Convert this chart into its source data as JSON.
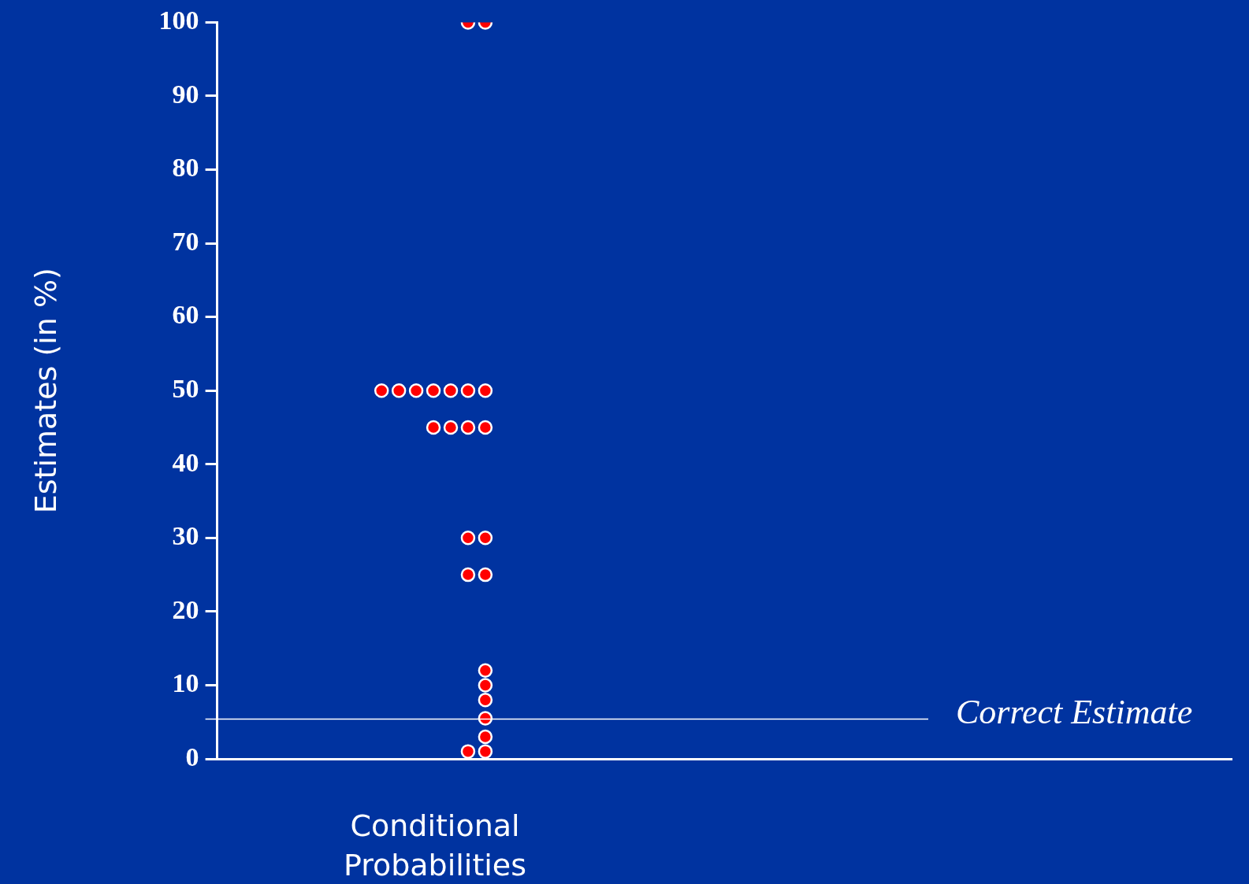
{
  "chart_data": {
    "type": "scatter",
    "ylabel": "Estimates (in %)",
    "categories": [
      "Conditional Probabilities"
    ],
    "series": [
      {
        "color": "#ff0000",
        "x": [
          "Conditional Probabilities",
          "Conditional Probabilities",
          "Conditional Probabilities",
          "Conditional Probabilities",
          "Conditional Probabilities",
          "Conditional Probabilities",
          "Conditional Probabilities",
          "Conditional Probabilities",
          "Conditional Probabilities",
          "Conditional Probabilities",
          "Conditional Probabilities",
          "Conditional Probabilities",
          "Conditional Probabilities",
          "Conditional Probabilities",
          "Conditional Probabilities",
          "Conditional Probabilities",
          "Conditional Probabilities",
          "Conditional Probabilities",
          "Conditional Probabilities",
          "Conditional Probabilities",
          "Conditional Probabilities",
          "Conditional Probabilities",
          "Conditional Probabilities",
          "Conditional Probabilities"
        ],
        "values": [
          100,
          100,
          50,
          50,
          50,
          50,
          50,
          50,
          50,
          45,
          45,
          45,
          45,
          30,
          30,
          25,
          25,
          12,
          10,
          8,
          5.5,
          3,
          1,
          1
        ]
      }
    ],
    "ylim": [
      0,
      100
    ],
    "yticks": [
      0,
      10,
      20,
      30,
      40,
      50,
      60,
      70,
      80,
      90,
      100
    ],
    "marker": "circle",
    "grid": false,
    "legend": false,
    "ref_lines": [
      {
        "axis": "y",
        "value": 5.4,
        "label": "Correct Estimate",
        "color": "#ffffff"
      }
    ]
  }
}
